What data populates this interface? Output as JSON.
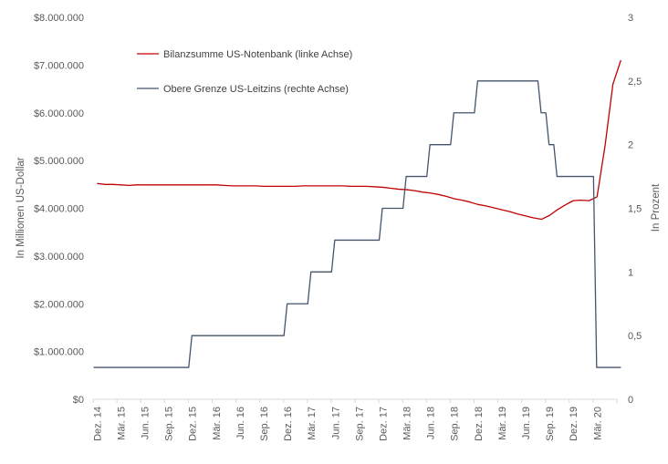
{
  "chart_data": {
    "type": "line",
    "x_categories": [
      "Dez. 14",
      "Mär. 15",
      "Jun. 15",
      "Sep. 15",
      "Dez. 15",
      "Mär. 16",
      "Jun. 16",
      "Sep. 16",
      "Dez. 16",
      "Mär. 17",
      "Jun. 17",
      "Sep. 17",
      "Dez. 17",
      "Mär. 18",
      "Jun. 18",
      "Sep. 18",
      "Dez. 18",
      "Mär. 19",
      "Jun. 19",
      "Sep. 19",
      "Dez. 19",
      "Mär. 20"
    ],
    "ylabel_left": "In Millionen US-Dollar",
    "ylabel_right": "In Prozent",
    "left_axis": {
      "min": 0,
      "max": 8000000,
      "ticks": [
        0,
        1000000,
        2000000,
        3000000,
        4000000,
        5000000,
        6000000,
        7000000,
        8000000
      ],
      "tick_labels": [
        "$0",
        "$1.000.000",
        "$2.000.000",
        "$3.000.000",
        "$4.000.000",
        "$5.000.000",
        "$6.000.000",
        "$7.000.000",
        "$8.000.000"
      ]
    },
    "right_axis": {
      "min": 0,
      "max": 3,
      "ticks": [
        0,
        0.5,
        1,
        1.5,
        2,
        2.5,
        3
      ],
      "tick_labels": [
        "0",
        "0,5",
        "1",
        "1,5",
        "2",
        "2,5",
        "3"
      ]
    },
    "grid": false,
    "legend_position": "top-left",
    "series": [
      {
        "name": "Bilanzsumme US-Notenbank (linke Achse)",
        "axis": "left",
        "color": "#c00000",
        "points": [
          [
            "Dez. 14",
            4520000
          ],
          [
            "Jan. 15",
            4500000
          ],
          [
            "Feb. 15",
            4500000
          ],
          [
            "Mär. 15",
            4490000
          ],
          [
            "Apr. 15",
            4480000
          ],
          [
            "Mai 15",
            4490000
          ],
          [
            "Jun. 15",
            4490000
          ],
          [
            "Jul. 15",
            4490000
          ],
          [
            "Aug. 15",
            4490000
          ],
          [
            "Sep. 15",
            4490000
          ],
          [
            "Okt. 15",
            4490000
          ],
          [
            "Nov. 15",
            4490000
          ],
          [
            "Dez. 15",
            4490000
          ],
          [
            "Jan. 16",
            4490000
          ],
          [
            "Feb. 16",
            4490000
          ],
          [
            "Mär. 16",
            4490000
          ],
          [
            "Apr. 16",
            4480000
          ],
          [
            "Mai 16",
            4470000
          ],
          [
            "Jun. 16",
            4470000
          ],
          [
            "Jul. 16",
            4470000
          ],
          [
            "Aug. 16",
            4470000
          ],
          [
            "Sep. 16",
            4460000
          ],
          [
            "Okt. 16",
            4460000
          ],
          [
            "Nov. 16",
            4460000
          ],
          [
            "Dez. 16",
            4460000
          ],
          [
            "Jan. 17",
            4460000
          ],
          [
            "Feb. 17",
            4470000
          ],
          [
            "Mär. 17",
            4470000
          ],
          [
            "Apr. 17",
            4470000
          ],
          [
            "Mai 17",
            4470000
          ],
          [
            "Jun. 17",
            4470000
          ],
          [
            "Jul. 17",
            4470000
          ],
          [
            "Aug. 17",
            4460000
          ],
          [
            "Sep. 17",
            4460000
          ],
          [
            "Okt. 17",
            4460000
          ],
          [
            "Nov. 17",
            4450000
          ],
          [
            "Dez. 17",
            4440000
          ],
          [
            "Jan. 18",
            4420000
          ],
          [
            "Feb. 18",
            4400000
          ],
          [
            "Mär. 18",
            4390000
          ],
          [
            "Apr. 18",
            4370000
          ],
          [
            "Mai 18",
            4340000
          ],
          [
            "Jun. 18",
            4320000
          ],
          [
            "Jul. 18",
            4290000
          ],
          [
            "Aug. 18",
            4250000
          ],
          [
            "Sep. 18",
            4200000
          ],
          [
            "Okt. 18",
            4170000
          ],
          [
            "Nov. 18",
            4130000
          ],
          [
            "Dez. 18",
            4080000
          ],
          [
            "Jan. 19",
            4050000
          ],
          [
            "Feb. 19",
            4010000
          ],
          [
            "Mär. 19",
            3970000
          ],
          [
            "Apr. 19",
            3930000
          ],
          [
            "Mai 19",
            3880000
          ],
          [
            "Jun. 19",
            3840000
          ],
          [
            "Jul. 19",
            3800000
          ],
          [
            "Aug. 19",
            3770000
          ],
          [
            "Sep. 19",
            3850000
          ],
          [
            "Okt. 19",
            3970000
          ],
          [
            "Nov. 19",
            4070000
          ],
          [
            "Dez. 19",
            4160000
          ],
          [
            "Jan. 20",
            4170000
          ],
          [
            "Feb. 20",
            4160000
          ],
          [
            "Mär. 20",
            4240000
          ],
          [
            "Apr. 20",
            5300000
          ],
          [
            "Mai 20",
            6600000
          ],
          [
            "Jun. 20",
            7100000
          ]
        ]
      },
      {
        "name": "Obere Grenze US-Leitzins (rechte Achse)",
        "axis": "right",
        "color": "#44546a",
        "shape": "step",
        "points": [
          [
            "Dez. 14",
            0.25
          ],
          [
            "Dez. 15",
            0.5
          ],
          [
            "Dez. 16",
            0.75
          ],
          [
            "Mär. 17",
            1.0
          ],
          [
            "Jun. 17",
            1.25
          ],
          [
            "Dez. 17",
            1.5
          ],
          [
            "Mär. 18",
            1.75
          ],
          [
            "Jun. 18",
            2.0
          ],
          [
            "Sep. 18",
            2.25
          ],
          [
            "Dez. 18",
            2.5
          ],
          [
            "Aug. 19",
            2.25
          ],
          [
            "Sep. 19",
            2.0
          ],
          [
            "Okt. 19",
            1.75
          ],
          [
            "Mär. 20",
            0.25
          ],
          [
            "Jun. 20",
            0.25
          ]
        ]
      }
    ]
  }
}
